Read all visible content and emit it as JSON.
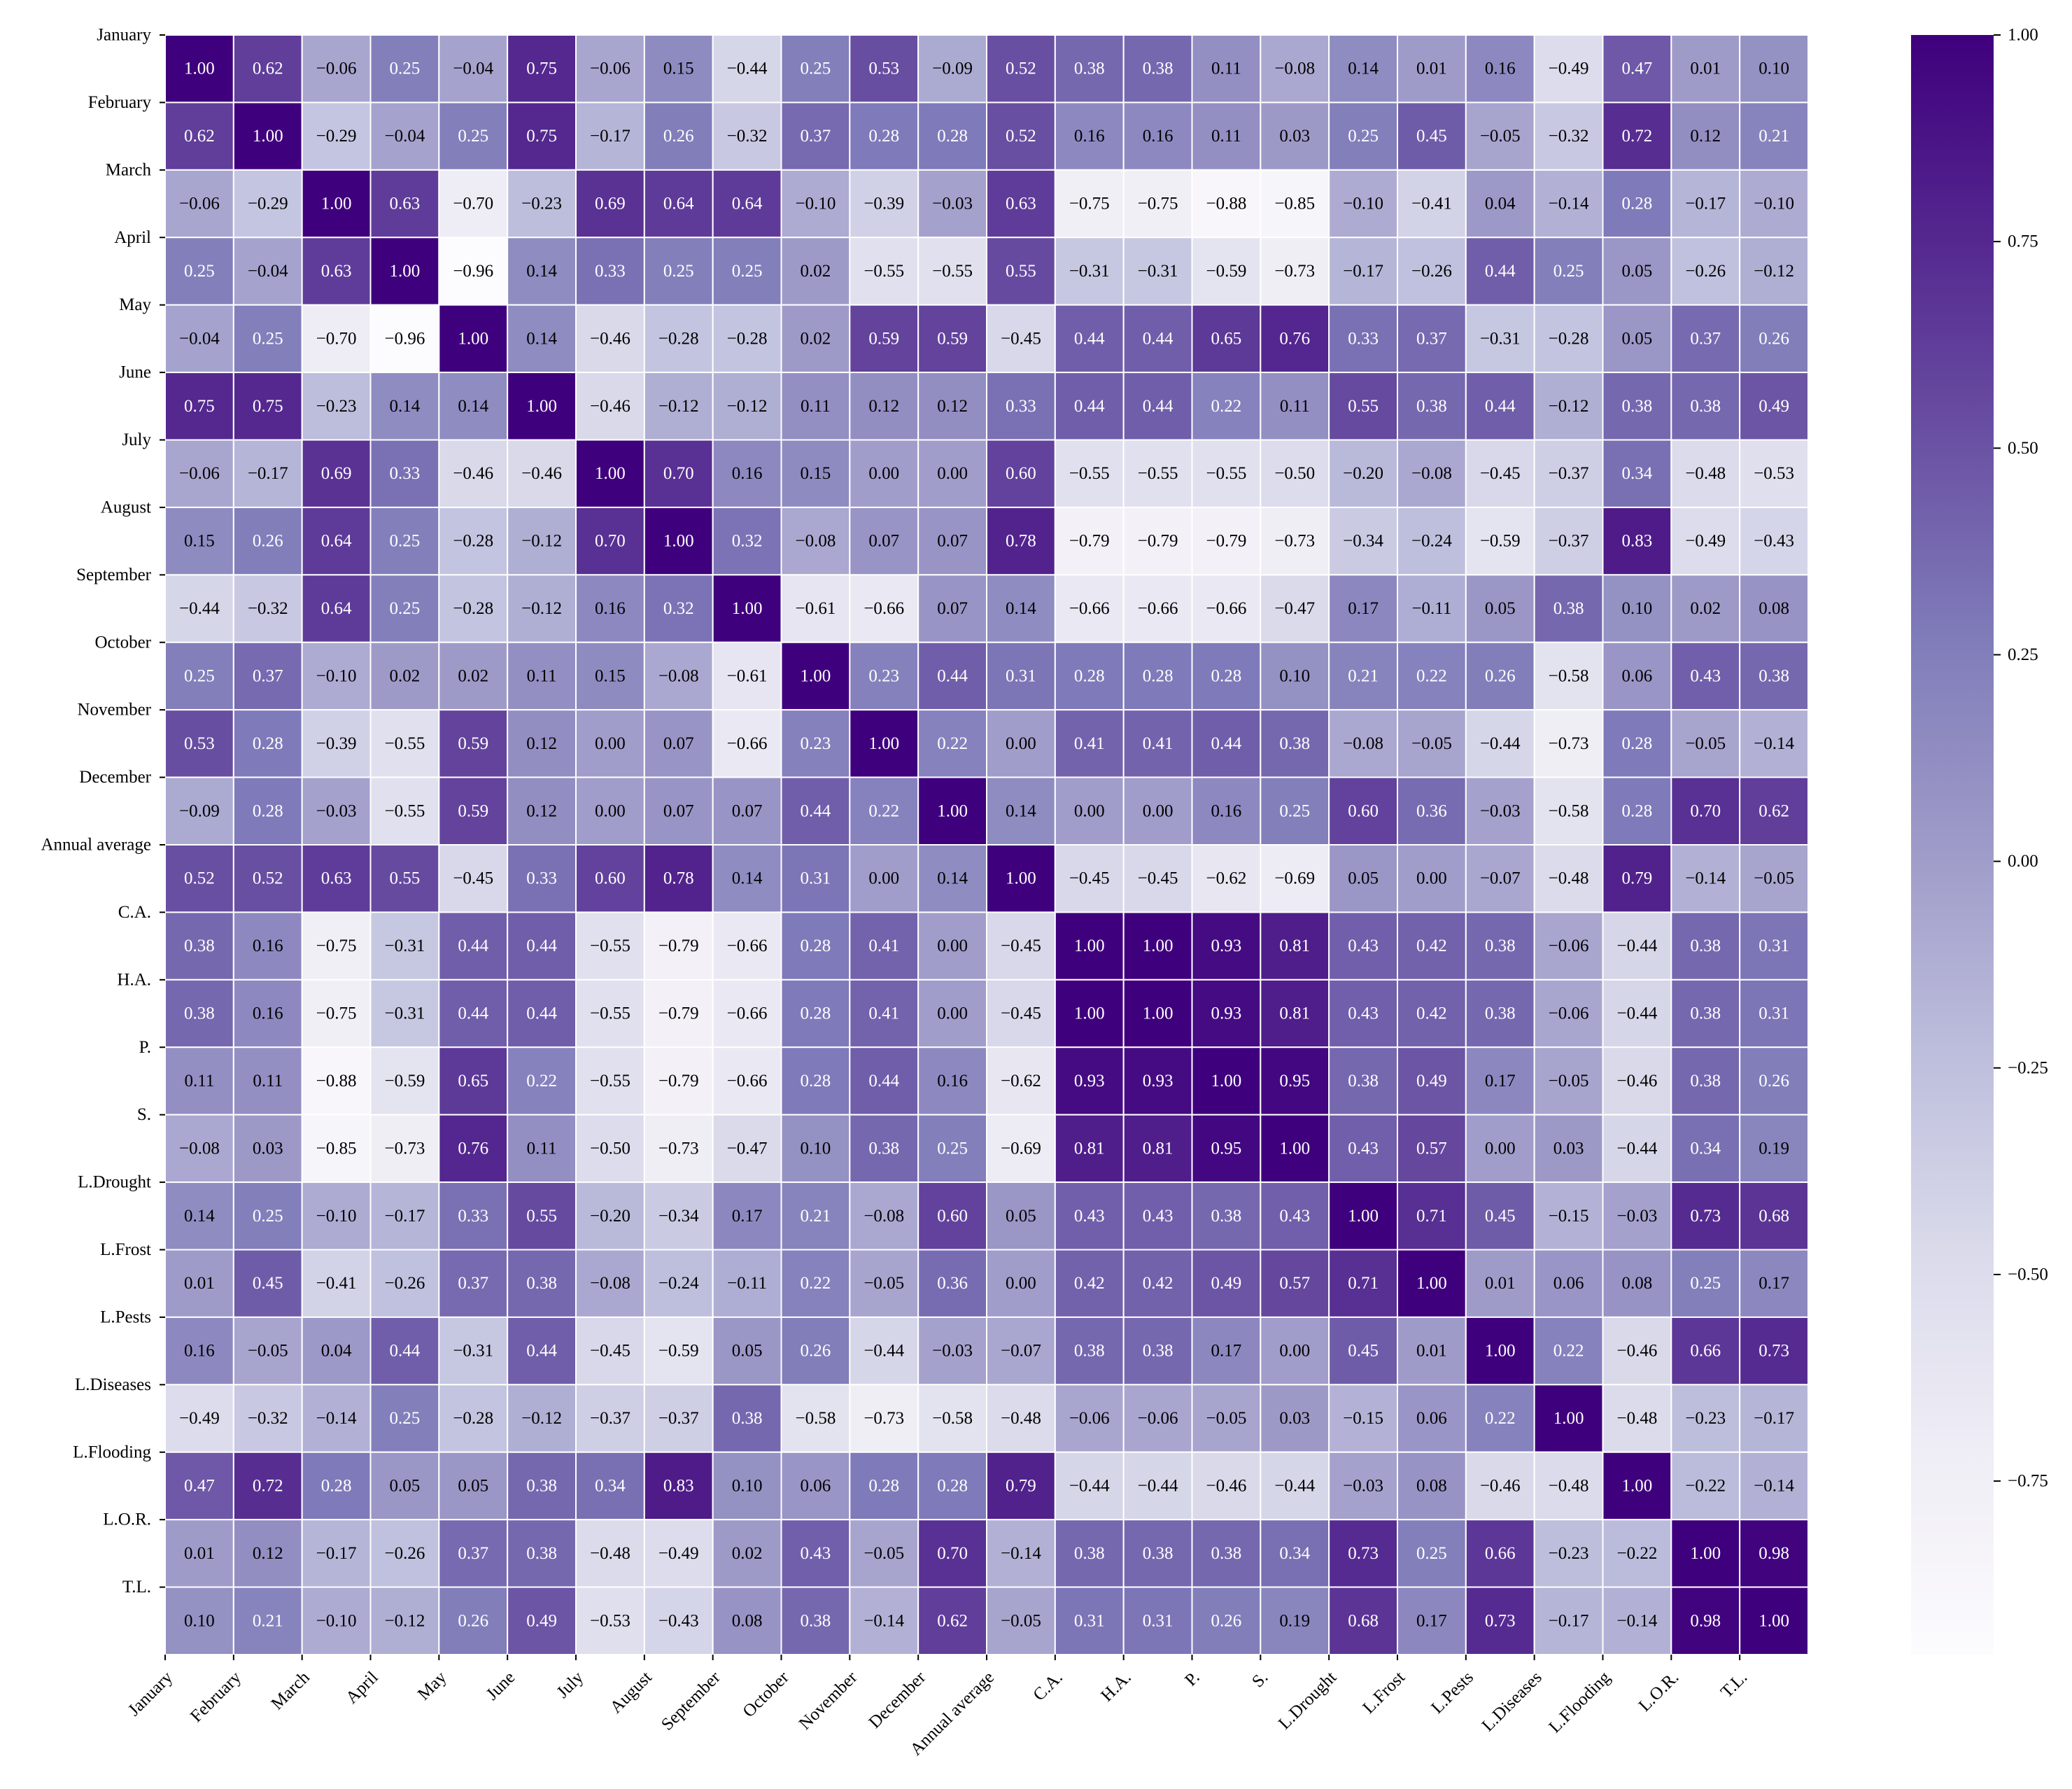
{
  "chart_data": {
    "type": "heatmap",
    "labels": [
      "January",
      "February",
      "March",
      "April",
      "May",
      "June",
      "July",
      "August",
      "September",
      "October",
      "November",
      "December",
      "Annual average",
      "C.A.",
      "H.A.",
      "P.",
      "S.",
      "L.Drought",
      "L.Frost",
      "L.Pests",
      "L.Diseases",
      "L.Flooding",
      "L.O.R.",
      "T.L."
    ],
    "matrix": [
      [
        1.0,
        0.62,
        -0.06,
        0.25,
        -0.04,
        0.75,
        -0.06,
        0.15,
        -0.44,
        0.25,
        0.53,
        -0.09,
        0.52,
        0.38,
        0.38,
        0.11,
        -0.08,
        0.14,
        0.01,
        0.16,
        -0.49,
        0.47,
        0.01,
        0.1
      ],
      [
        0.62,
        1.0,
        -0.29,
        -0.04,
        0.25,
        0.75,
        -0.17,
        0.26,
        -0.32,
        0.37,
        0.28,
        0.28,
        0.52,
        0.16,
        0.16,
        0.11,
        0.03,
        0.25,
        0.45,
        -0.05,
        -0.32,
        0.72,
        0.12,
        0.21
      ],
      [
        -0.06,
        -0.29,
        1.0,
        0.63,
        -0.7,
        -0.23,
        0.69,
        0.64,
        0.64,
        -0.1,
        -0.39,
        -0.03,
        0.63,
        -0.75,
        -0.75,
        -0.88,
        -0.85,
        -0.1,
        -0.41,
        0.04,
        -0.14,
        0.28,
        -0.17,
        -0.1
      ],
      [
        0.25,
        -0.04,
        0.63,
        1.0,
        -0.96,
        0.14,
        0.33,
        0.25,
        0.25,
        0.02,
        -0.55,
        -0.55,
        0.55,
        -0.31,
        -0.31,
        -0.59,
        -0.73,
        -0.17,
        -0.26,
        0.44,
        0.25,
        0.05,
        -0.26,
        -0.12
      ],
      [
        -0.04,
        0.25,
        -0.7,
        -0.96,
        1.0,
        0.14,
        -0.46,
        -0.28,
        -0.28,
        0.02,
        0.59,
        0.59,
        -0.45,
        0.44,
        0.44,
        0.65,
        0.76,
        0.33,
        0.37,
        -0.31,
        -0.28,
        0.05,
        0.37,
        0.26
      ],
      [
        0.75,
        0.75,
        -0.23,
        0.14,
        0.14,
        1.0,
        -0.46,
        -0.12,
        -0.12,
        0.11,
        0.12,
        0.12,
        0.33,
        0.44,
        0.44,
        0.22,
        0.11,
        0.55,
        0.38,
        0.44,
        -0.12,
        0.38,
        0.38,
        0.49
      ],
      [
        -0.06,
        -0.17,
        0.69,
        0.33,
        -0.46,
        -0.46,
        1.0,
        0.7,
        0.16,
        0.15,
        0.0,
        0.0,
        0.6,
        -0.55,
        -0.55,
        -0.55,
        -0.5,
        -0.2,
        -0.08,
        -0.45,
        -0.37,
        0.34,
        -0.48,
        -0.53
      ],
      [
        0.15,
        0.26,
        0.64,
        0.25,
        -0.28,
        -0.12,
        0.7,
        1.0,
        0.32,
        -0.08,
        0.07,
        0.07,
        0.78,
        -0.79,
        -0.79,
        -0.79,
        -0.73,
        -0.34,
        -0.24,
        -0.59,
        -0.37,
        0.83,
        -0.49,
        -0.43
      ],
      [
        -0.44,
        -0.32,
        0.64,
        0.25,
        -0.28,
        -0.12,
        0.16,
        0.32,
        1.0,
        -0.61,
        -0.66,
        0.07,
        0.14,
        -0.66,
        -0.66,
        -0.66,
        -0.47,
        0.17,
        -0.11,
        0.05,
        0.38,
        0.1,
        0.02,
        0.08
      ],
      [
        0.25,
        0.37,
        -0.1,
        0.02,
        0.02,
        0.11,
        0.15,
        -0.08,
        -0.61,
        1.0,
        0.23,
        0.44,
        0.31,
        0.28,
        0.28,
        0.28,
        0.1,
        0.21,
        0.22,
        0.26,
        -0.58,
        0.06,
        0.43,
        0.38
      ],
      [
        0.53,
        0.28,
        -0.39,
        -0.55,
        0.59,
        0.12,
        0.0,
        0.07,
        -0.66,
        0.23,
        1.0,
        0.22,
        0.0,
        0.41,
        0.41,
        0.44,
        0.38,
        -0.08,
        -0.05,
        -0.44,
        -0.73,
        0.28,
        -0.05,
        -0.14
      ],
      [
        -0.09,
        0.28,
        -0.03,
        -0.55,
        0.59,
        0.12,
        0.0,
        0.07,
        0.07,
        0.44,
        0.22,
        1.0,
        0.14,
        0.0,
        0.0,
        0.16,
        0.25,
        0.6,
        0.36,
        -0.03,
        -0.58,
        0.28,
        0.7,
        0.62
      ],
      [
        0.52,
        0.52,
        0.63,
        0.55,
        -0.45,
        0.33,
        0.6,
        0.78,
        0.14,
        0.31,
        0.0,
        0.14,
        1.0,
        -0.45,
        -0.45,
        -0.62,
        -0.69,
        0.05,
        0.0,
        -0.07,
        -0.48,
        0.79,
        -0.14,
        -0.05
      ],
      [
        0.38,
        0.16,
        -0.75,
        -0.31,
        0.44,
        0.44,
        -0.55,
        -0.79,
        -0.66,
        0.28,
        0.41,
        0.0,
        -0.45,
        1.0,
        1.0,
        0.93,
        0.81,
        0.43,
        0.42,
        0.38,
        -0.06,
        -0.44,
        0.38,
        0.31
      ],
      [
        0.38,
        0.16,
        -0.75,
        -0.31,
        0.44,
        0.44,
        -0.55,
        -0.79,
        -0.66,
        0.28,
        0.41,
        0.0,
        -0.45,
        1.0,
        1.0,
        0.93,
        0.81,
        0.43,
        0.42,
        0.38,
        -0.06,
        -0.44,
        0.38,
        0.31
      ],
      [
        0.11,
        0.11,
        -0.88,
        -0.59,
        0.65,
        0.22,
        -0.55,
        -0.79,
        -0.66,
        0.28,
        0.44,
        0.16,
        -0.62,
        0.93,
        0.93,
        1.0,
        0.95,
        0.38,
        0.49,
        0.17,
        -0.05,
        -0.46,
        0.38,
        0.26
      ],
      [
        -0.08,
        0.03,
        -0.85,
        -0.73,
        0.76,
        0.11,
        -0.5,
        -0.73,
        -0.47,
        0.1,
        0.38,
        0.25,
        -0.69,
        0.81,
        0.81,
        0.95,
        1.0,
        0.43,
        0.57,
        0.0,
        0.03,
        -0.44,
        0.34,
        0.19
      ],
      [
        0.14,
        0.25,
        -0.1,
        -0.17,
        0.33,
        0.55,
        -0.2,
        -0.34,
        0.17,
        0.21,
        -0.08,
        0.6,
        0.05,
        0.43,
        0.43,
        0.38,
        0.43,
        1.0,
        0.71,
        0.45,
        -0.15,
        -0.03,
        0.73,
        0.68
      ],
      [
        0.01,
        0.45,
        -0.41,
        -0.26,
        0.37,
        0.38,
        -0.08,
        -0.24,
        -0.11,
        0.22,
        -0.05,
        0.36,
        0.0,
        0.42,
        0.42,
        0.49,
        0.57,
        0.71,
        1.0,
        0.01,
        0.06,
        0.08,
        0.25,
        0.17
      ],
      [
        0.16,
        -0.05,
        0.04,
        0.44,
        -0.31,
        0.44,
        -0.45,
        -0.59,
        0.05,
        0.26,
        -0.44,
        -0.03,
        -0.07,
        0.38,
        0.38,
        0.17,
        0.0,
        0.45,
        0.01,
        1.0,
        0.22,
        -0.46,
        0.66,
        0.73
      ],
      [
        -0.49,
        -0.32,
        -0.14,
        0.25,
        -0.28,
        -0.12,
        -0.37,
        -0.37,
        0.38,
        -0.58,
        -0.73,
        -0.58,
        -0.48,
        -0.06,
        -0.06,
        -0.05,
        0.03,
        -0.15,
        0.06,
        0.22,
        1.0,
        -0.48,
        -0.23,
        -0.17
      ],
      [
        0.47,
        0.72,
        0.28,
        0.05,
        0.05,
        0.38,
        0.34,
        0.83,
        0.1,
        0.06,
        0.28,
        0.28,
        0.79,
        -0.44,
        -0.44,
        -0.46,
        -0.44,
        -0.03,
        0.08,
        -0.46,
        -0.48,
        1.0,
        -0.22,
        -0.14
      ],
      [
        0.01,
        0.12,
        -0.17,
        -0.26,
        0.37,
        0.38,
        -0.48,
        -0.49,
        0.02,
        0.43,
        -0.05,
        0.7,
        -0.14,
        0.38,
        0.38,
        0.38,
        0.34,
        0.73,
        0.25,
        0.66,
        -0.23,
        -0.22,
        1.0,
        0.98
      ],
      [
        0.1,
        0.21,
        -0.1,
        -0.12,
        0.26,
        0.49,
        -0.53,
        -0.43,
        0.08,
        0.38,
        -0.14,
        0.62,
        -0.05,
        0.31,
        0.31,
        0.26,
        0.19,
        0.68,
        0.17,
        0.73,
        -0.17,
        -0.14,
        0.98,
        1.0
      ]
    ],
    "vmin": -0.96,
    "vmax": 1.0,
    "colormap": [
      "#fcfbfd",
      "#efedf5",
      "#dadaeb",
      "#bcbddc",
      "#9e9ac8",
      "#807dba",
      "#6a51a3",
      "#54278f",
      "#3f007d"
    ],
    "colorbar_ticks": [
      1.0,
      0.75,
      0.5,
      0.25,
      0.0,
      -0.25,
      -0.5,
      -0.75
    ],
    "colorbar_tick_labels": [
      "1.00",
      "0.75",
      "0.50",
      "0.25",
      "0.00",
      "−0.25",
      "−0.50",
      "−0.75"
    ],
    "grid_color": "#ffffff",
    "text_color_dark": "#000000",
    "text_color_light": "#ffffff"
  }
}
